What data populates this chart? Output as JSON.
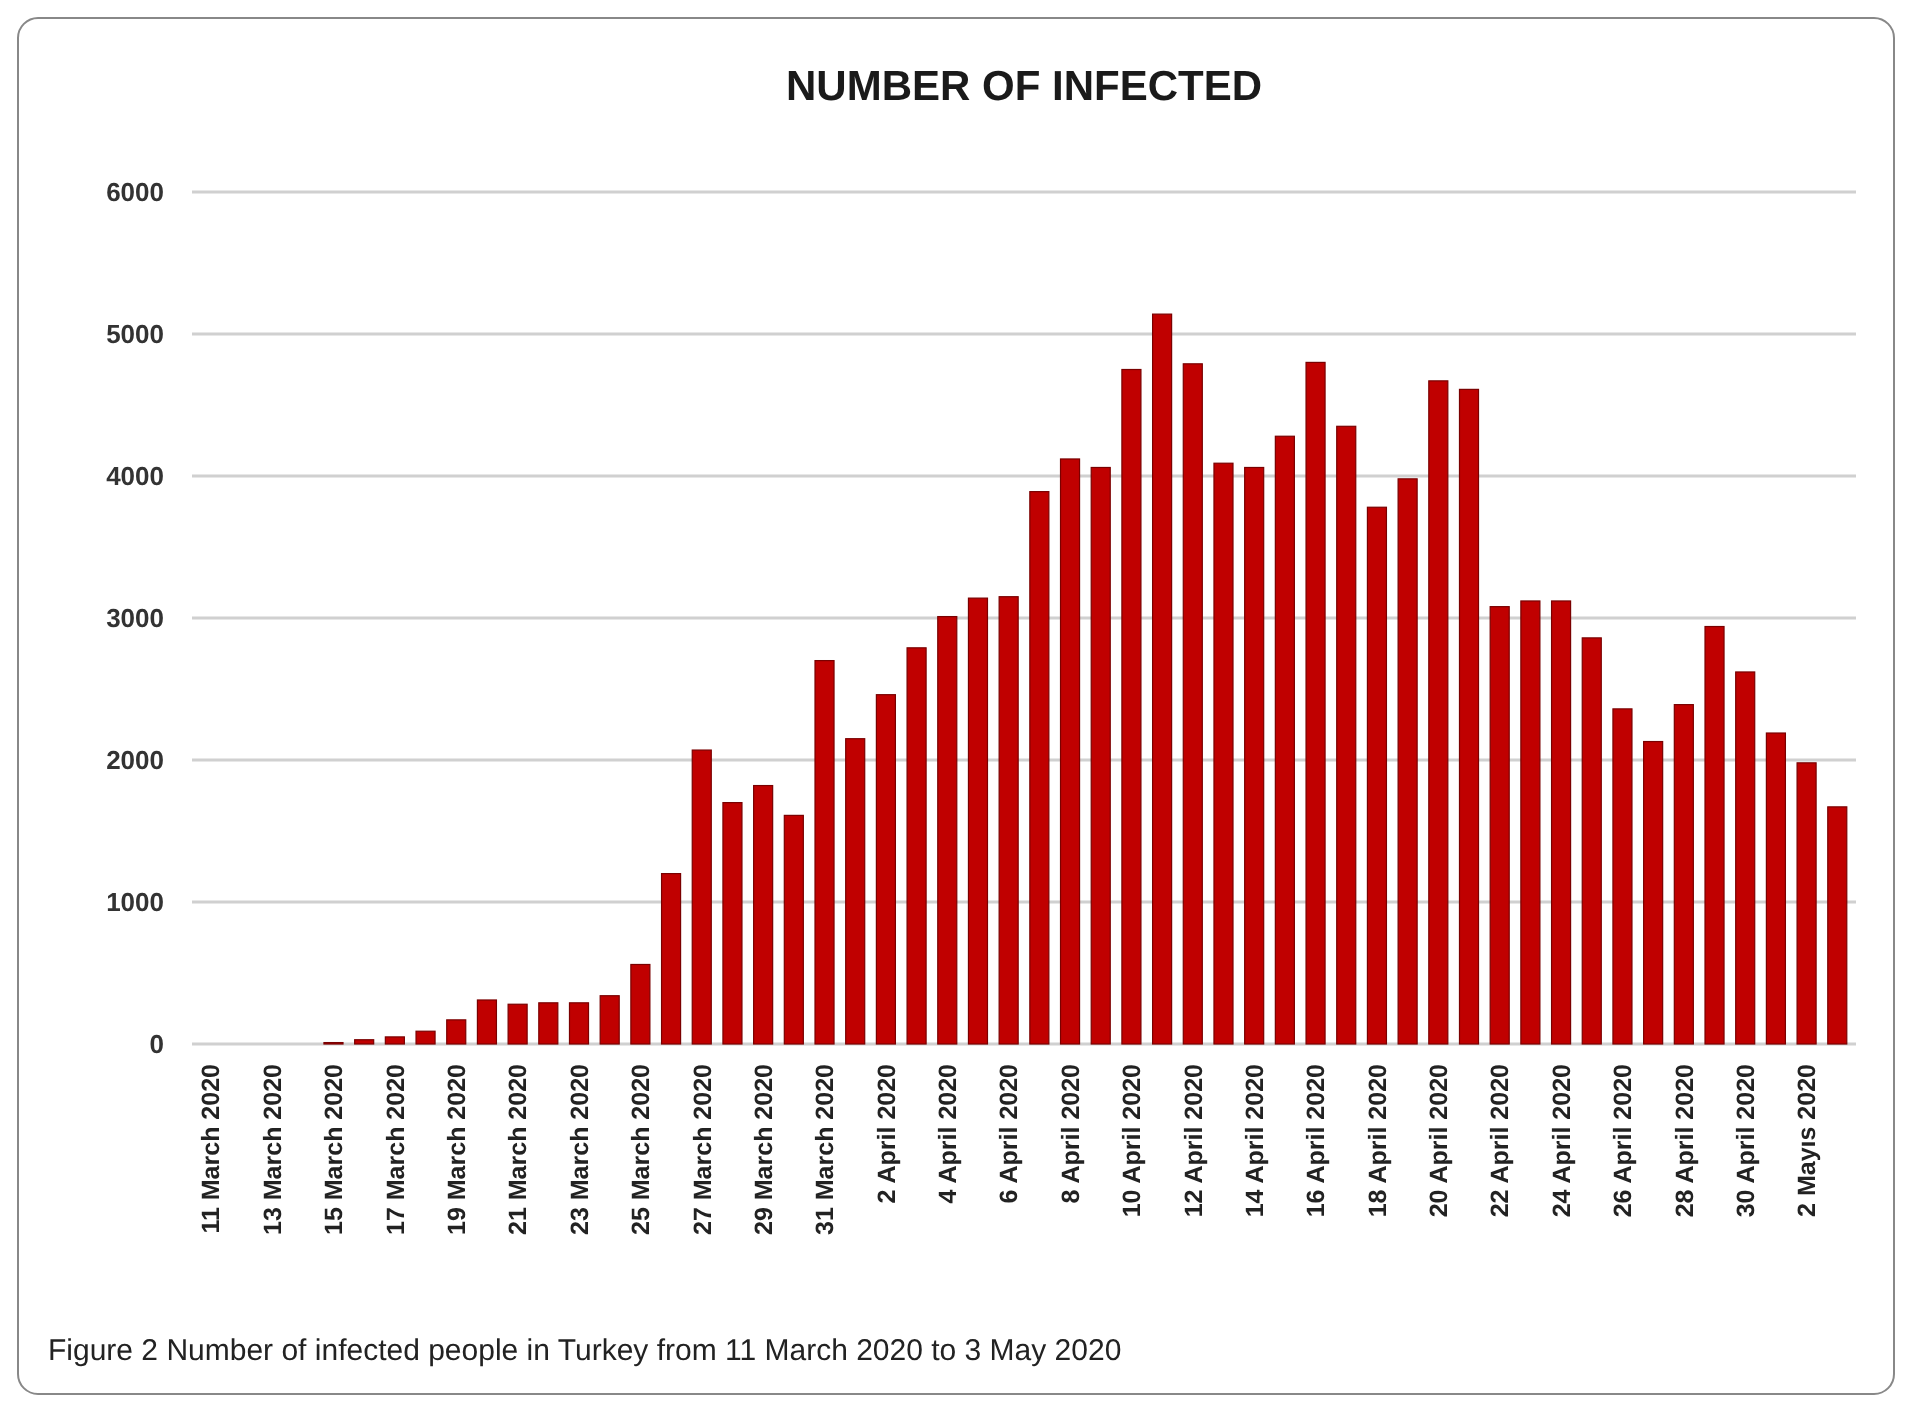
{
  "chart_data": {
    "type": "bar",
    "title": "NUMBER OF INFECTED",
    "categories": [
      "11 March 2020",
      null,
      "13 March 2020",
      null,
      "15 March 2020",
      null,
      "17 March 2020",
      null,
      "19 March 2020",
      null,
      "21 March 2020",
      null,
      "23 March 2020",
      null,
      "25 March 2020",
      null,
      "27 March 2020",
      null,
      "29 March 2020",
      null,
      "31 March 2020",
      null,
      "2 April 2020",
      null,
      "4 April 2020",
      null,
      "6 April 2020",
      null,
      "8 April 2020",
      null,
      "10 April 2020",
      null,
      "12 April 2020",
      null,
      "14 April 2020",
      null,
      "16 April 2020",
      null,
      "18 April 2020",
      null,
      "20 April 2020",
      null,
      "22 April 2020",
      null,
      "24 April 2020",
      null,
      "26 April 2020",
      null,
      "28 April 2020",
      null,
      "30 April 2020",
      null,
      "2 Mayıs 2020",
      null
    ],
    "values": [
      0,
      0,
      0,
      0,
      10,
      30,
      50,
      90,
      170,
      310,
      280,
      290,
      290,
      340,
      560,
      1200,
      2070,
      1700,
      1820,
      1610,
      2700,
      2150,
      2460,
      2790,
      3010,
      3140,
      3150,
      3890,
      4120,
      4060,
      4750,
      5140,
      4790,
      4090,
      4060,
      4280,
      4800,
      4350,
      3780,
      3980,
      4670,
      4610,
      3080,
      3120,
      3120,
      2860,
      2360,
      2130,
      2390,
      2940,
      2620,
      2190,
      1980,
      1670
    ],
    "color": "#c00000",
    "ylim": [
      0,
      6000
    ],
    "yticks": [
      0,
      1000,
      2000,
      3000,
      4000,
      5000,
      6000
    ],
    "grid": "y",
    "annotations": [
      "Figure 2  Number of infected people in Turkey from 11 March 2020 to 3 May 2020"
    ]
  }
}
